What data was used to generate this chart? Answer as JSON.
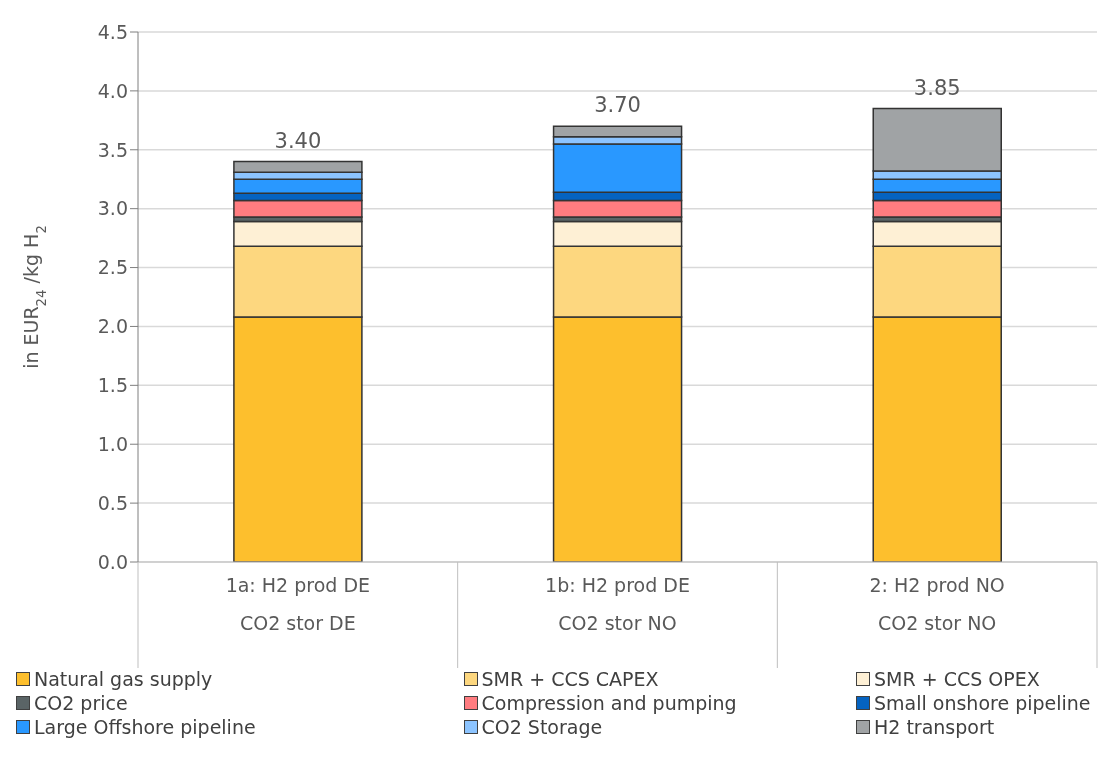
{
  "chart_data": {
    "type": "bar",
    "stacked": true,
    "ylabel": "in EUR$_{24}$/kg H$_{2}$",
    "categories": [
      "1a: H2 prod DE\nCO2 stor DE",
      "1b: H2 prod DE\nCO2 stor NO",
      "2: H2 prod NO\nCO2 stor NO"
    ],
    "series": [
      {
        "name": "Natural gas supply",
        "color": "#fdbf2d",
        "values": [
          2.08,
          2.08,
          2.08
        ]
      },
      {
        "name": "SMR + CCS CAPEX",
        "color": "#fdd77f",
        "values": [
          0.6,
          0.6,
          0.6
        ]
      },
      {
        "name": "SMR + CCS OPEX",
        "color": "#fef0d5",
        "values": [
          0.21,
          0.21,
          0.21
        ]
      },
      {
        "name": "CO2 price",
        "color": "#5a6466",
        "values": [
          0.04,
          0.04,
          0.04
        ]
      },
      {
        "name": "Compression and pumping",
        "color": "#ff7c80",
        "values": [
          0.14,
          0.14,
          0.14
        ]
      },
      {
        "name": "Small onshore pipeline",
        "color": "#0563c1",
        "values": [
          0.06,
          0.07,
          0.07
        ]
      },
      {
        "name": "Large Offshore pipeline",
        "color": "#2998ff",
        "values": [
          0.12,
          0.41,
          0.11
        ]
      },
      {
        "name": "CO2 Storage",
        "color": "#8cc4ff",
        "values": [
          0.06,
          0.06,
          0.07
        ]
      },
      {
        "name": "H2 transport",
        "color": "#a0a3a5",
        "values": [
          0.09,
          0.09,
          0.53
        ]
      }
    ],
    "totals": [
      "3.40",
      "3.70",
      "3.85"
    ],
    "ylim": [
      0,
      4.5
    ],
    "yticks": [
      {
        "value": 0,
        "label": "0.0"
      },
      {
        "value": 0.5,
        "label": "0.5"
      },
      {
        "value": 1,
        "label": "1.0"
      },
      {
        "value": 1.5,
        "label": "1.5"
      },
      {
        "value": 2,
        "label": "2.0"
      },
      {
        "value": 2.5,
        "label": "2.5"
      },
      {
        "value": 3,
        "label": "3.0"
      },
      {
        "value": 3.5,
        "label": "3.5"
      },
      {
        "value": 4,
        "label": "4.0"
      },
      {
        "value": 4.5,
        "label": "4.5"
      }
    ],
    "grid": "y",
    "legend": "bottom"
  }
}
